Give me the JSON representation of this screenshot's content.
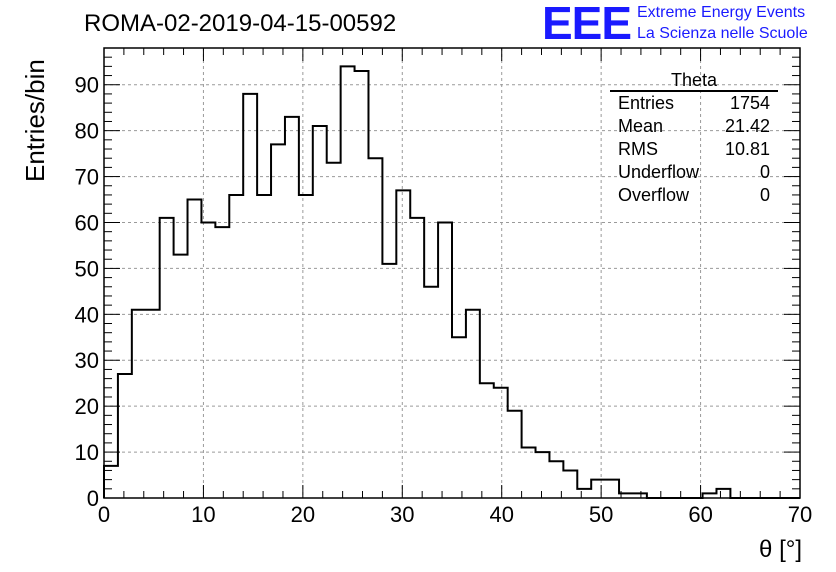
{
  "title": "ROMA-02-2019-04-15-00592",
  "logo": {
    "mark": "EEE",
    "line1": "Extreme Energy Events",
    "line2": "La Scienza nelle Scuole",
    "color": "#1a1aff"
  },
  "stats": {
    "name": "Theta",
    "rows": [
      {
        "label": "Entries",
        "value": "1754"
      },
      {
        "label": "Mean",
        "value": "21.42"
      },
      {
        "label": "RMS",
        "value": "10.81"
      },
      {
        "label": "Underflow",
        "value": "0"
      },
      {
        "label": "Overflow",
        "value": "0"
      }
    ]
  },
  "chart_data": {
    "type": "bar",
    "style": "step-histogram",
    "title": "ROMA-02-2019-04-15-00592",
    "xlabel": "θ [°]",
    "ylabel": "Entries/bin",
    "xlim": [
      0,
      70
    ],
    "ylim": [
      0,
      98
    ],
    "bin_width": 1.4,
    "x_ticks": [
      0,
      10,
      20,
      30,
      40,
      50,
      60,
      70
    ],
    "y_ticks": [
      0,
      10,
      20,
      30,
      40,
      50,
      60,
      70,
      80,
      90
    ],
    "grid": true,
    "values": [
      7,
      27,
      41,
      41,
      61,
      53,
      65,
      60,
      59,
      66,
      88,
      66,
      77,
      83,
      66,
      81,
      73,
      94,
      93,
      74,
      51,
      67,
      61,
      46,
      60,
      35,
      41,
      25,
      24,
      19,
      11,
      10,
      8,
      6,
      2,
      4,
      4,
      1,
      1,
      0,
      0,
      0,
      0,
      1,
      2,
      0,
      0,
      0,
      0,
      0
    ]
  }
}
